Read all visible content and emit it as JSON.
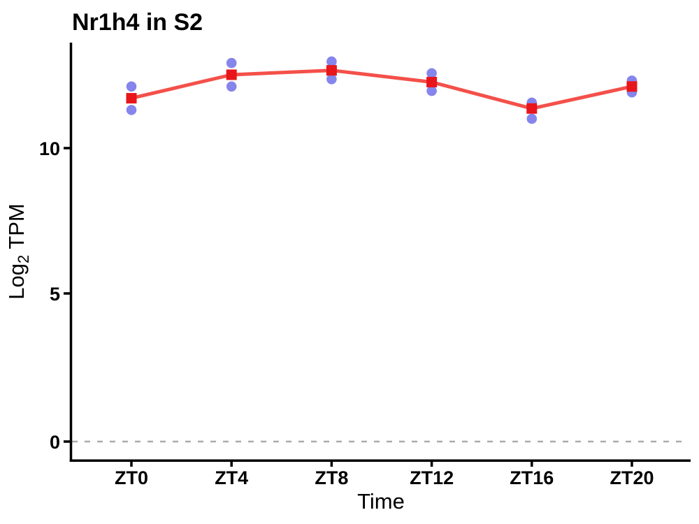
{
  "chart_data": {
    "type": "line",
    "title": "Nr1h4 in S2",
    "xlabel": "Time",
    "ylabel": "Log2 TPM",
    "ylabel_parts": {
      "prefix": "Log",
      "sub": "2",
      "suffix": " TPM"
    },
    "categories": [
      "ZT0",
      "ZT4",
      "ZT8",
      "ZT12",
      "ZT16",
      "ZT20"
    ],
    "ytick_labels": [
      "0",
      "5",
      "10"
    ],
    "yticks": [
      0,
      5,
      10
    ],
    "ylim": [
      -0.7,
      13.6
    ],
    "grid": "off",
    "legend": "none",
    "series": [
      {
        "name": "mean",
        "marker": "square",
        "marker_color": "#E8151B",
        "line_color": "#F4504A",
        "values": [
          11.7,
          12.5,
          12.65,
          12.25,
          11.35,
          12.1
        ]
      },
      {
        "name": "replicates",
        "marker": "circle",
        "marker_color": "#8585EC",
        "points": [
          [
            12.1,
            11.3
          ],
          [
            12.9,
            12.1
          ],
          [
            12.95,
            12.35
          ],
          [
            12.55,
            11.95
          ],
          [
            11.55,
            11.0
          ],
          [
            12.3,
            11.9
          ]
        ]
      }
    ],
    "reference_line": {
      "y": 0,
      "style": "dashed",
      "color": "#ABABAB"
    },
    "axis_color": "#000000"
  }
}
